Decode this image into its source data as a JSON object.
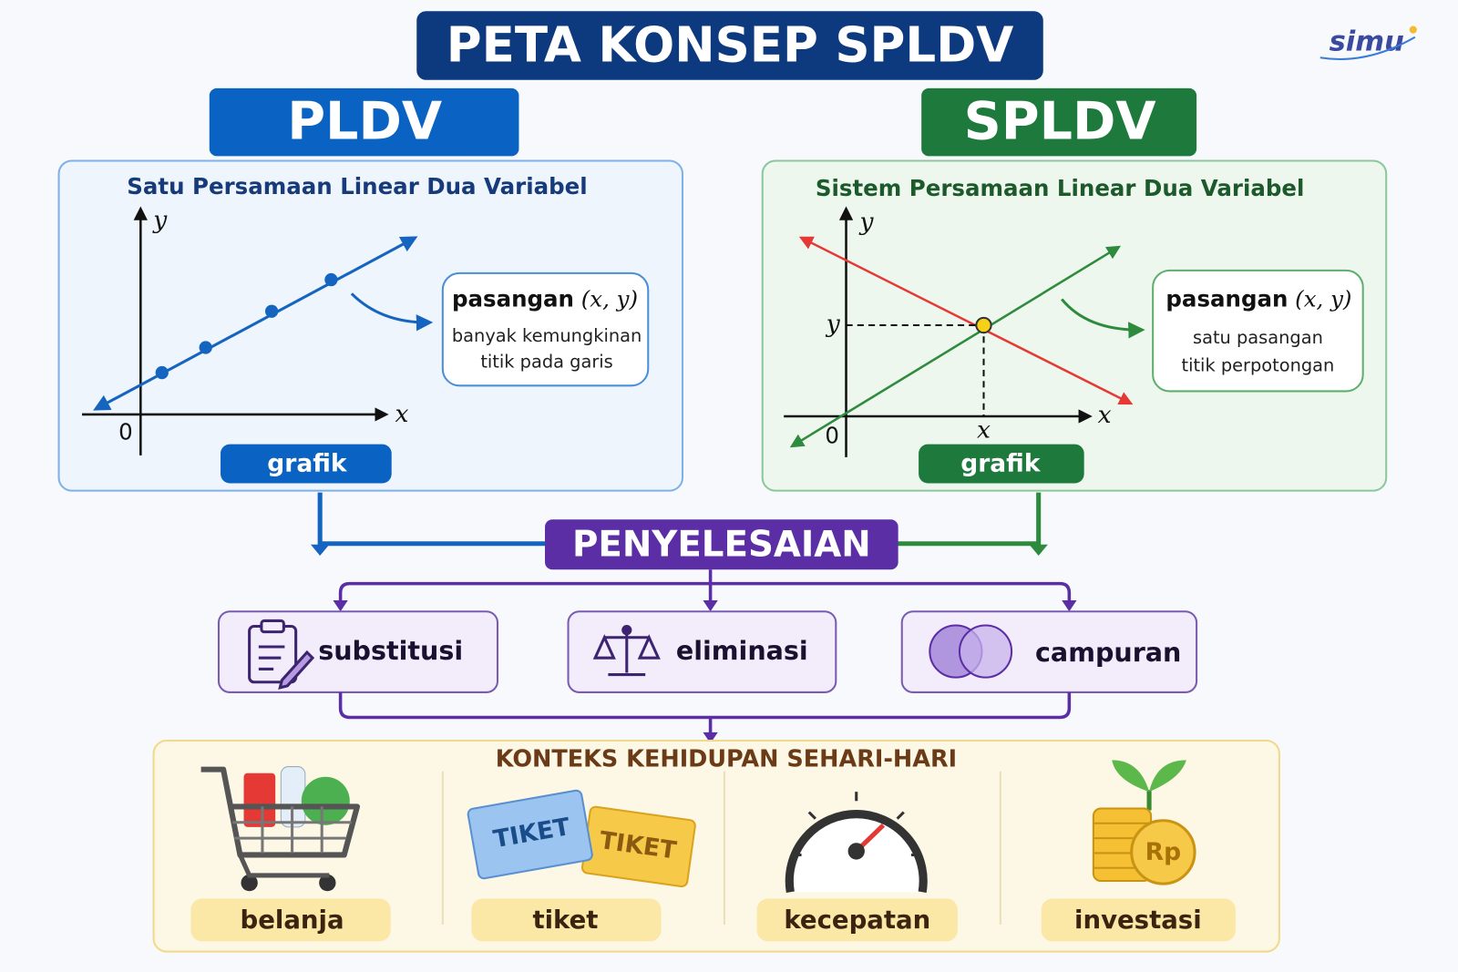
{
  "header": {
    "title": "PETA KONSEP SPLDV",
    "logo": "simu"
  },
  "pldv": {
    "heading": "PLDV",
    "subtitle": "Satu Persamaan Linear Dua Variabel",
    "graph": {
      "y_label": "y",
      "x_label": "x",
      "origin": "0"
    },
    "callout": {
      "label": "pasangan",
      "math": "(x, y)",
      "lines": [
        "banyak kemungkinan",
        "titik pada garis"
      ]
    },
    "button": "grafik"
  },
  "spldv": {
    "heading": "SPLDV",
    "subtitle": "Sistem Persamaan Linear Dua Variabel",
    "graph": {
      "y_label": "y",
      "x_label": "x",
      "origin": "0",
      "point_y": "y",
      "point_x": "x"
    },
    "callout": {
      "label": "pasangan",
      "math": "(x, y)",
      "lines": [
        "satu pasangan",
        "titik perpotongan"
      ]
    },
    "button": "grafik"
  },
  "solution": {
    "title": "PENYELESAIAN",
    "methods": [
      "substitusi",
      "eliminasi",
      "campuran"
    ]
  },
  "context": {
    "title": "KONTEKS KEHIDUPAN SEHARI-HARI",
    "items": [
      "belanja",
      "tiket",
      "kecepatan",
      "investasi"
    ],
    "icon_texts": [
      "TIKET",
      "TIKET",
      "Rp"
    ]
  }
}
